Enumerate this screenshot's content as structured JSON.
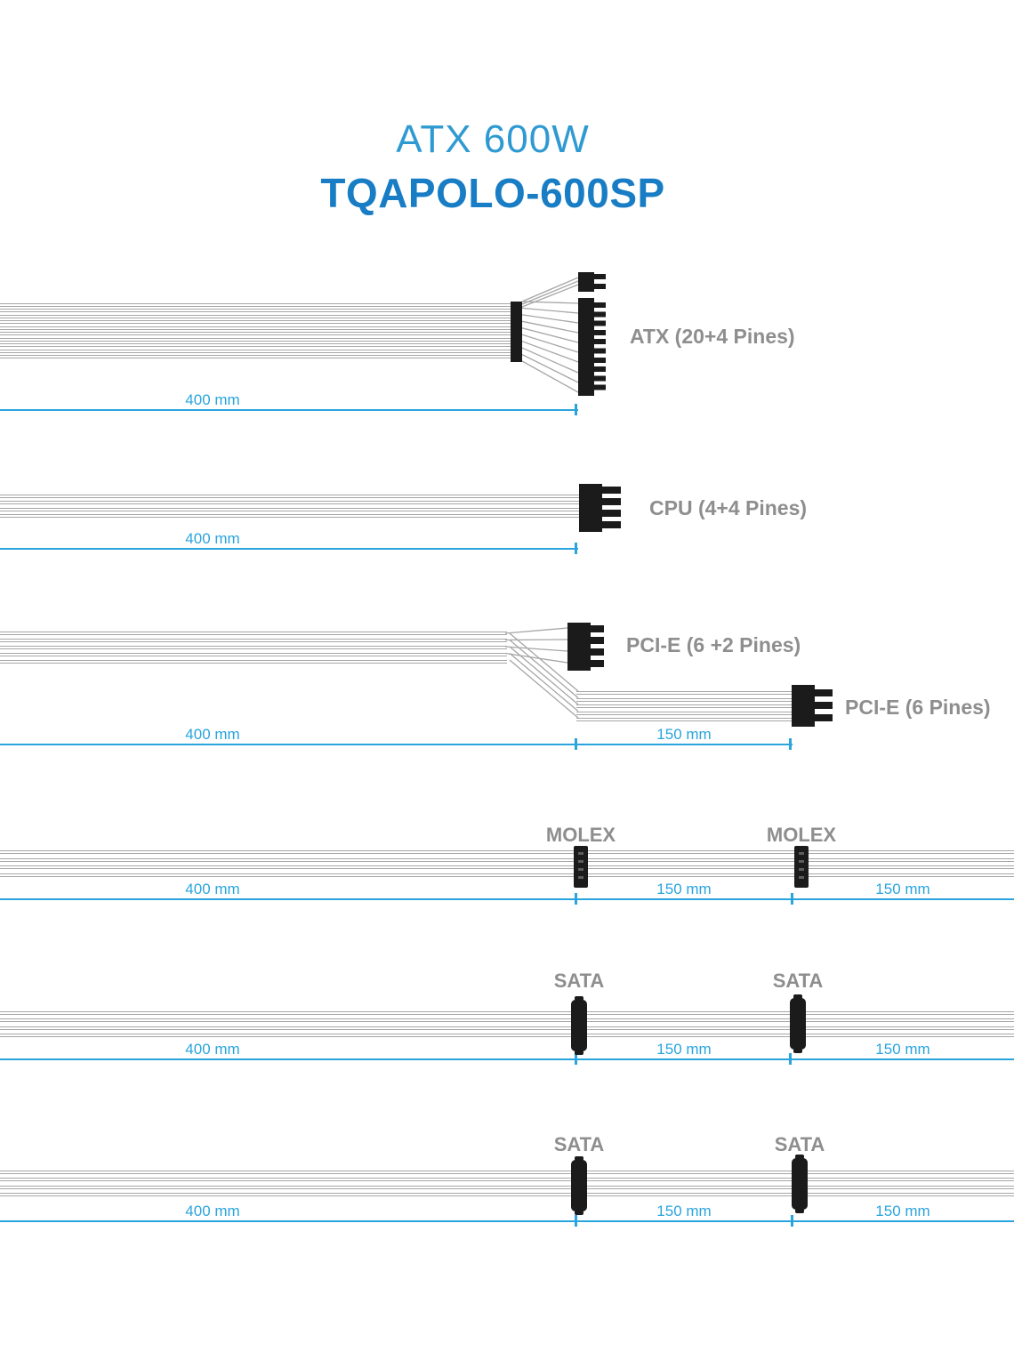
{
  "title": {
    "line1": "ATX 600W",
    "line2": "TQAPOLO-600SP"
  },
  "colors": {
    "accent_blue": "#2aa4dd",
    "title_blue_light": "#2f9ad2",
    "title_blue_bold": "#187dc4",
    "label_gray": "#8e8e8e",
    "connector_black": "#1b1b1b",
    "wire_gray": "#a6a6a6"
  },
  "rows": {
    "atx": {
      "label": "ATX (20+4 Pines)",
      "d400": "400 mm"
    },
    "cpu": {
      "label": "CPU (4+4 Pines)",
      "d400": "400 mm"
    },
    "pcie": {
      "label_8pin": "PCI-E (6 +2 Pines)",
      "label_6pin": "PCI-E (6 Pines)",
      "d400": "400 mm",
      "d150": "150 mm"
    },
    "molex": {
      "label1": "MOLEX",
      "label2": "MOLEX",
      "d400": "400 mm",
      "d150a": "150 mm",
      "d150b": "150 mm"
    },
    "sata1": {
      "label1": "SATA",
      "label2": "SATA",
      "d400": "400 mm",
      "d150a": "150 mm",
      "d150b": "150 mm"
    },
    "sata2": {
      "label1": "SATA",
      "label2": "SATA",
      "d400": "400 mm",
      "d150a": "150 mm",
      "d150b": "150 mm"
    }
  }
}
